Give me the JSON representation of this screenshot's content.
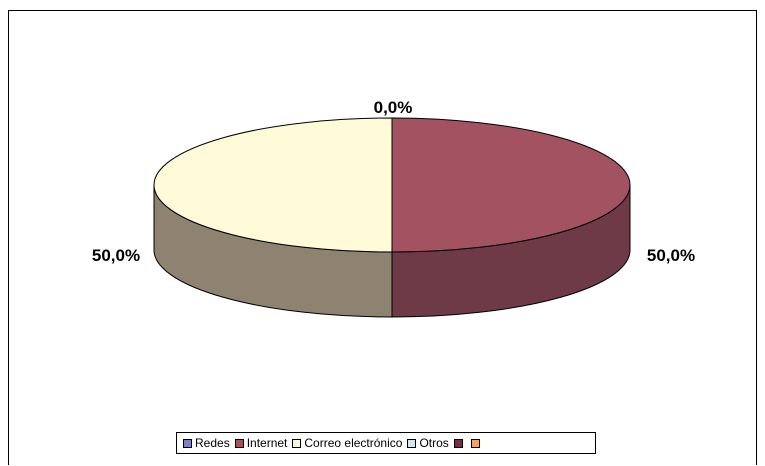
{
  "chart_data": {
    "type": "pie",
    "variant": "3d",
    "title": "",
    "slices": [
      {
        "name": "Redes",
        "value": 0,
        "label": "",
        "color": "#8080C0"
      },
      {
        "name": "Internet",
        "value": 50,
        "label": "50,0%",
        "color": "#A35262"
      },
      {
        "name": "Correo electrónico",
        "value": 50,
        "label": "50,0%",
        "color": "#FFFBD8"
      },
      {
        "name": "Otros",
        "value": 0,
        "label": "0,0%",
        "color": "#CDE8F0"
      },
      {
        "name": "",
        "value": 0,
        "label": "",
        "color": "#7A2E45"
      },
      {
        "name": "",
        "value": 0,
        "label": "",
        "color": "#F4A460"
      }
    ],
    "side_colors": {
      "Internet": "#6E3A47",
      "Correo electrónico": "#8E8270"
    },
    "legend_position": "bottom"
  }
}
